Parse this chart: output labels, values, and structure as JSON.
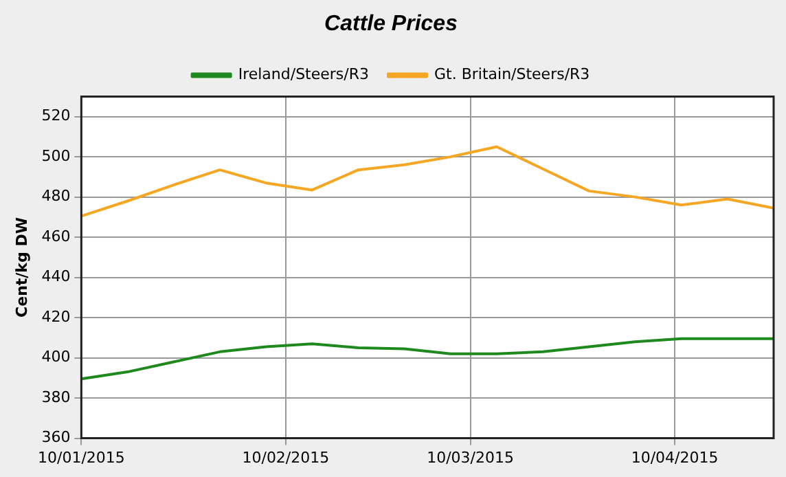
{
  "chart_data": {
    "type": "line",
    "title": "Cattle Prices",
    "ylabel": "Cent/kg DW",
    "x": [
      "2015-01-10",
      "2015-01-17",
      "2015-01-24",
      "2015-01-31",
      "2015-02-07",
      "2015-02-14",
      "2015-02-21",
      "2015-02-28",
      "2015-03-07",
      "2015-03-14",
      "2015-03-21",
      "2015-03-28",
      "2015-04-04",
      "2015-04-11",
      "2015-04-18",
      "2015-04-25"
    ],
    "series": [
      {
        "name": "Ireland/Steers/R3",
        "color": "#1e8a1e",
        "values": [
          389.5,
          393,
          398,
          403,
          405.5,
          407,
          405,
          404.5,
          402,
          402,
          403,
          405.5,
          408,
          409.5,
          409.5,
          409.5
        ]
      },
      {
        "name": "Gt. Britain/Steers/R3",
        "color": "#f5a623",
        "values": [
          470.5,
          478,
          486,
          493.5,
          487,
          483.5,
          493.5,
          496,
          500,
          505,
          494,
          483,
          480,
          476,
          479,
          474.5
        ]
      }
    ],
    "xlim": [
      "2015-01-10",
      "2015-04-25"
    ],
    "xticks": [
      {
        "value": "2015-01-10",
        "label": "10/01/2015"
      },
      {
        "value": "2015-02-10",
        "label": "10/02/2015"
      },
      {
        "value": "2015-03-10",
        "label": "10/03/2015"
      },
      {
        "value": "2015-04-10",
        "label": "10/04/2015"
      }
    ],
    "ylim": [
      360,
      530
    ],
    "yticks": [
      360,
      380,
      400,
      420,
      440,
      460,
      480,
      500,
      520
    ],
    "grid": true,
    "legend": "top",
    "marker": "none",
    "line_style": "solid"
  }
}
